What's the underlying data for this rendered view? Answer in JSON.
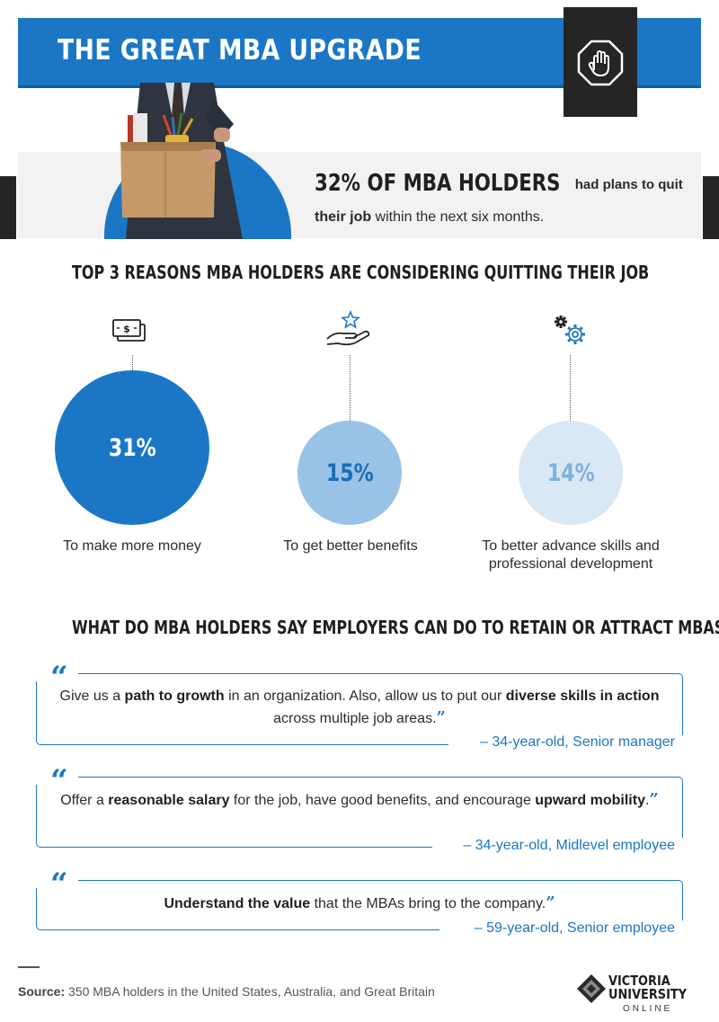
{
  "header": {
    "title": "THE GREAT MBA UPGRADE",
    "badge_icon": "hand-stop-icon"
  },
  "intro": {
    "stat_highlight": "32% OF MBA HOLDERS",
    "stat_text_1": " had plans to quit ",
    "stat_bold": "their job",
    "stat_text_2": " within the next six months."
  },
  "reasons": {
    "title": "TOP 3 REASONS MBA HOLDERS ARE CONSIDERING QUITTING THEIR JOB",
    "items": [
      {
        "icon": "money-bills-icon",
        "percent": "31%",
        "value": 31,
        "label": "To make more money"
      },
      {
        "icon": "hand-star-icon",
        "percent": "15%",
        "value": 15,
        "label": "To get better benefits"
      },
      {
        "icon": "gears-icon",
        "percent": "14%",
        "value": 14,
        "label_line1": "To better advance skills and",
        "label_line2": "professional development"
      }
    ],
    "colors": [
      "#1b77c6",
      "#98c3e6",
      "#d9e8f5"
    ]
  },
  "quotes": {
    "title": "WHAT DO MBA HOLDERS SAY EMPLOYERS CAN DO TO RETAIN OR ATTRACT MBAS?",
    "items": [
      {
        "t1": "Give us a ",
        "b1": "path to growth",
        "t2": " in an organization. Also, allow us to put our ",
        "b2": "diverse skills in action",
        "t3": " across multiple job areas.",
        "attribution": "– 34-year-old, Senior manager"
      },
      {
        "t1": "Offer a ",
        "b1": "reasonable salary",
        "t2": " for the job, have good benefits, and encourage ",
        "b2": "upward mobility",
        "t3": ".",
        "attribution": "– 34-year-old, Midlevel employee"
      },
      {
        "b1": "Understand the value",
        "t1": " that the MBAs bring to the company.",
        "attribution": "– 59-year-old, Senior employee"
      }
    ],
    "open_mark": "“",
    "close_mark": "”"
  },
  "footer": {
    "source_label": "Source:",
    "source_text": " 350 MBA holders in the United States, Australia, and Great Britain",
    "logo_line1": "VICTORIA",
    "logo_line2": "UNIVERSITY",
    "logo_line3": "ONLINE"
  }
}
